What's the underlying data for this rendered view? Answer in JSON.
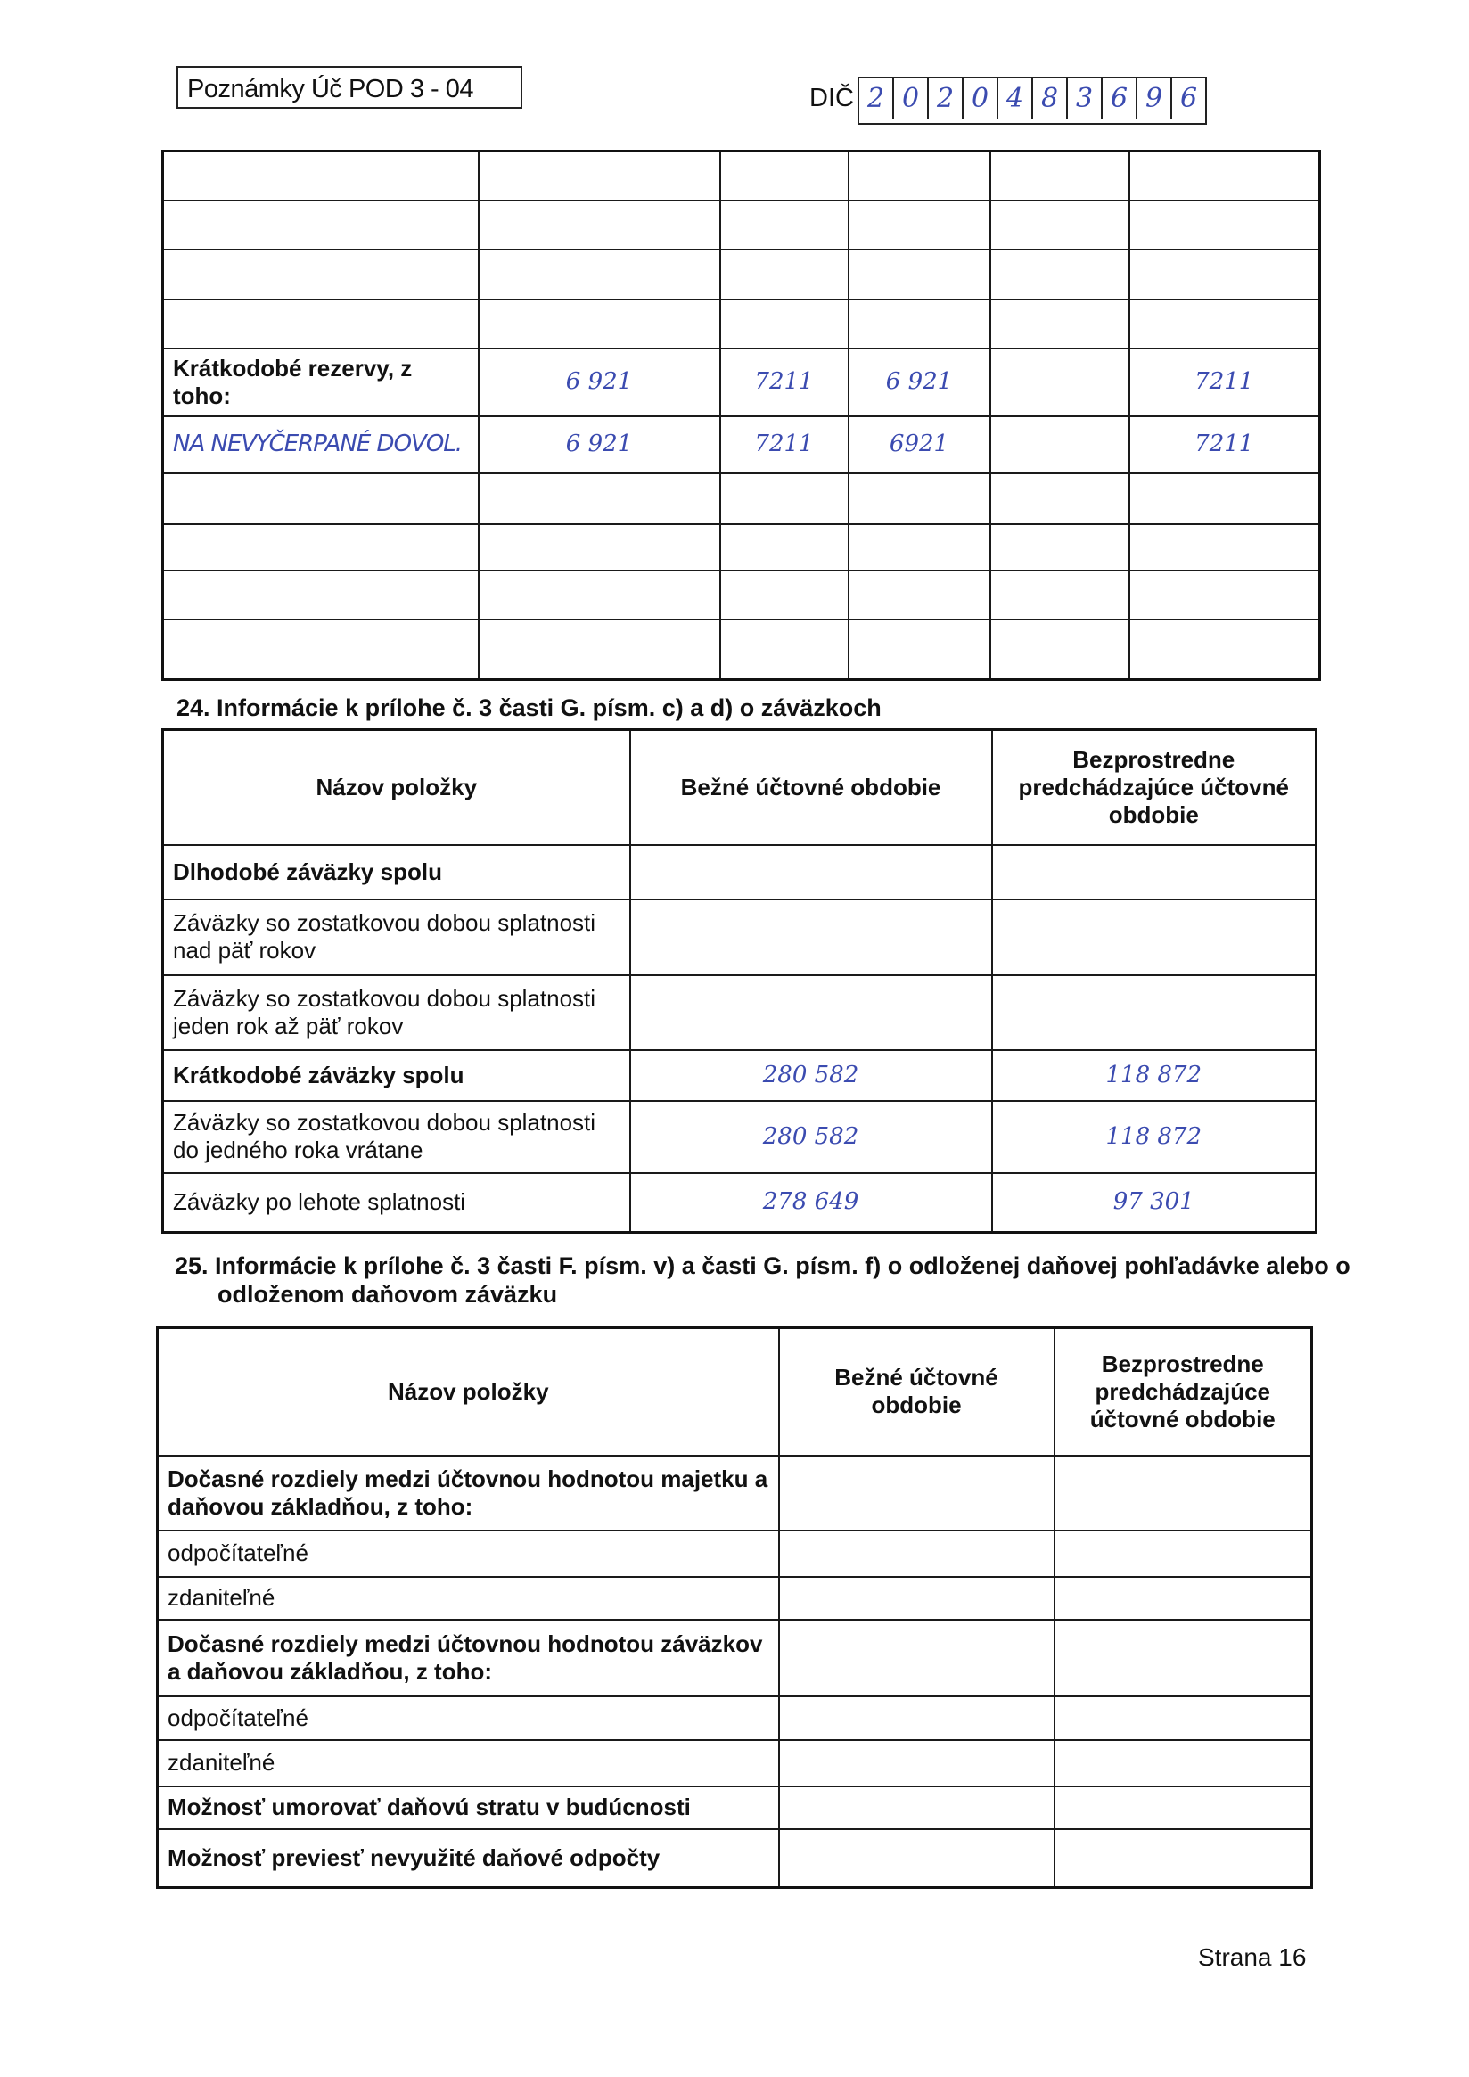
{
  "header": {
    "form_label": "Poznámky Úč POD 3 - 04",
    "dic_label": "DIČ",
    "dic_digits": [
      "2",
      "0",
      "2",
      "0",
      "4",
      "8",
      "3",
      "6",
      "9",
      "6"
    ]
  },
  "table1": {
    "rows": [
      [
        "",
        "",
        "",
        "",
        "",
        ""
      ],
      [
        "",
        "",
        "",
        "",
        "",
        ""
      ],
      [
        "",
        "",
        "",
        "",
        "",
        ""
      ],
      [
        "",
        "",
        "",
        "",
        "",
        ""
      ],
      [
        "Krátkodobé rezervy, z toho:",
        "6 921",
        "7211",
        "6 921",
        "",
        "7211"
      ],
      [
        "NA NEVYČERPANÉ DOVOL.",
        "6 921",
        "7211",
        "6921",
        "",
        "7211"
      ],
      [
        "",
        "",
        "",
        "",
        "",
        ""
      ],
      [
        "",
        "",
        "",
        "",
        "",
        ""
      ],
      [
        "",
        "",
        "",
        "",
        "",
        ""
      ],
      [
        "",
        "",
        "",
        "",
        "",
        ""
      ]
    ]
  },
  "section24": {
    "title": "24. Informácie k prílohe č. 3 časti G. písm. c) a d) o záväzkoch",
    "headers": [
      "Názov položky",
      "Bežné účtovné obdobie",
      "Bezprostredne predchádzajúce účtovné obdobie"
    ],
    "rows": [
      [
        "Dlhodobé záväzky spolu",
        "",
        ""
      ],
      [
        "Záväzky so zostatkovou dobou splatnosti nad päť rokov",
        "",
        ""
      ],
      [
        "Záväzky so zostatkovou dobou splatnosti jeden rok až päť rokov",
        "",
        ""
      ],
      [
        "Krátkodobé záväzky spolu",
        "280 582",
        "118 872"
      ],
      [
        "Záväzky so zostatkovou dobou splatnosti do jedného roka vrátane",
        "280 582",
        "118 872"
      ],
      [
        "Záväzky po lehote splatnosti",
        "278 649",
        "97 301"
      ]
    ]
  },
  "section25": {
    "title": "25. Informácie k prílohe č. 3 časti F. písm. v) a časti G. písm. f) o odloženej daňovej pohľadávke alebo o odloženom daňovom záväzku",
    "headers": [
      "Názov položky",
      "Bežné účtovné obdobie",
      "Bezprostredne predchádzajúce účtovné obdobie"
    ],
    "rows": [
      [
        "Dočasné rozdiely medzi účtovnou hodnotou majetku a daňovou základňou, z toho:",
        "",
        ""
      ],
      [
        "odpočítateľné",
        "",
        ""
      ],
      [
        "zdaniteľné",
        "",
        ""
      ],
      [
        "Dočasné rozdiely medzi účtovnou hodnotou záväzkov a daňovou základňou, z toho:",
        "",
        ""
      ],
      [
        "odpočítateľné",
        "",
        ""
      ],
      [
        "zdaniteľné",
        "",
        ""
      ],
      [
        "Možnosť umorovať daňovú stratu v budúcnosti",
        "",
        ""
      ],
      [
        "Možnosť previesť nevyužité daňové odpočty",
        "",
        ""
      ]
    ]
  },
  "footer": {
    "page_label": "Strana 16"
  },
  "colors": {
    "ink": "#3b4bb0"
  }
}
